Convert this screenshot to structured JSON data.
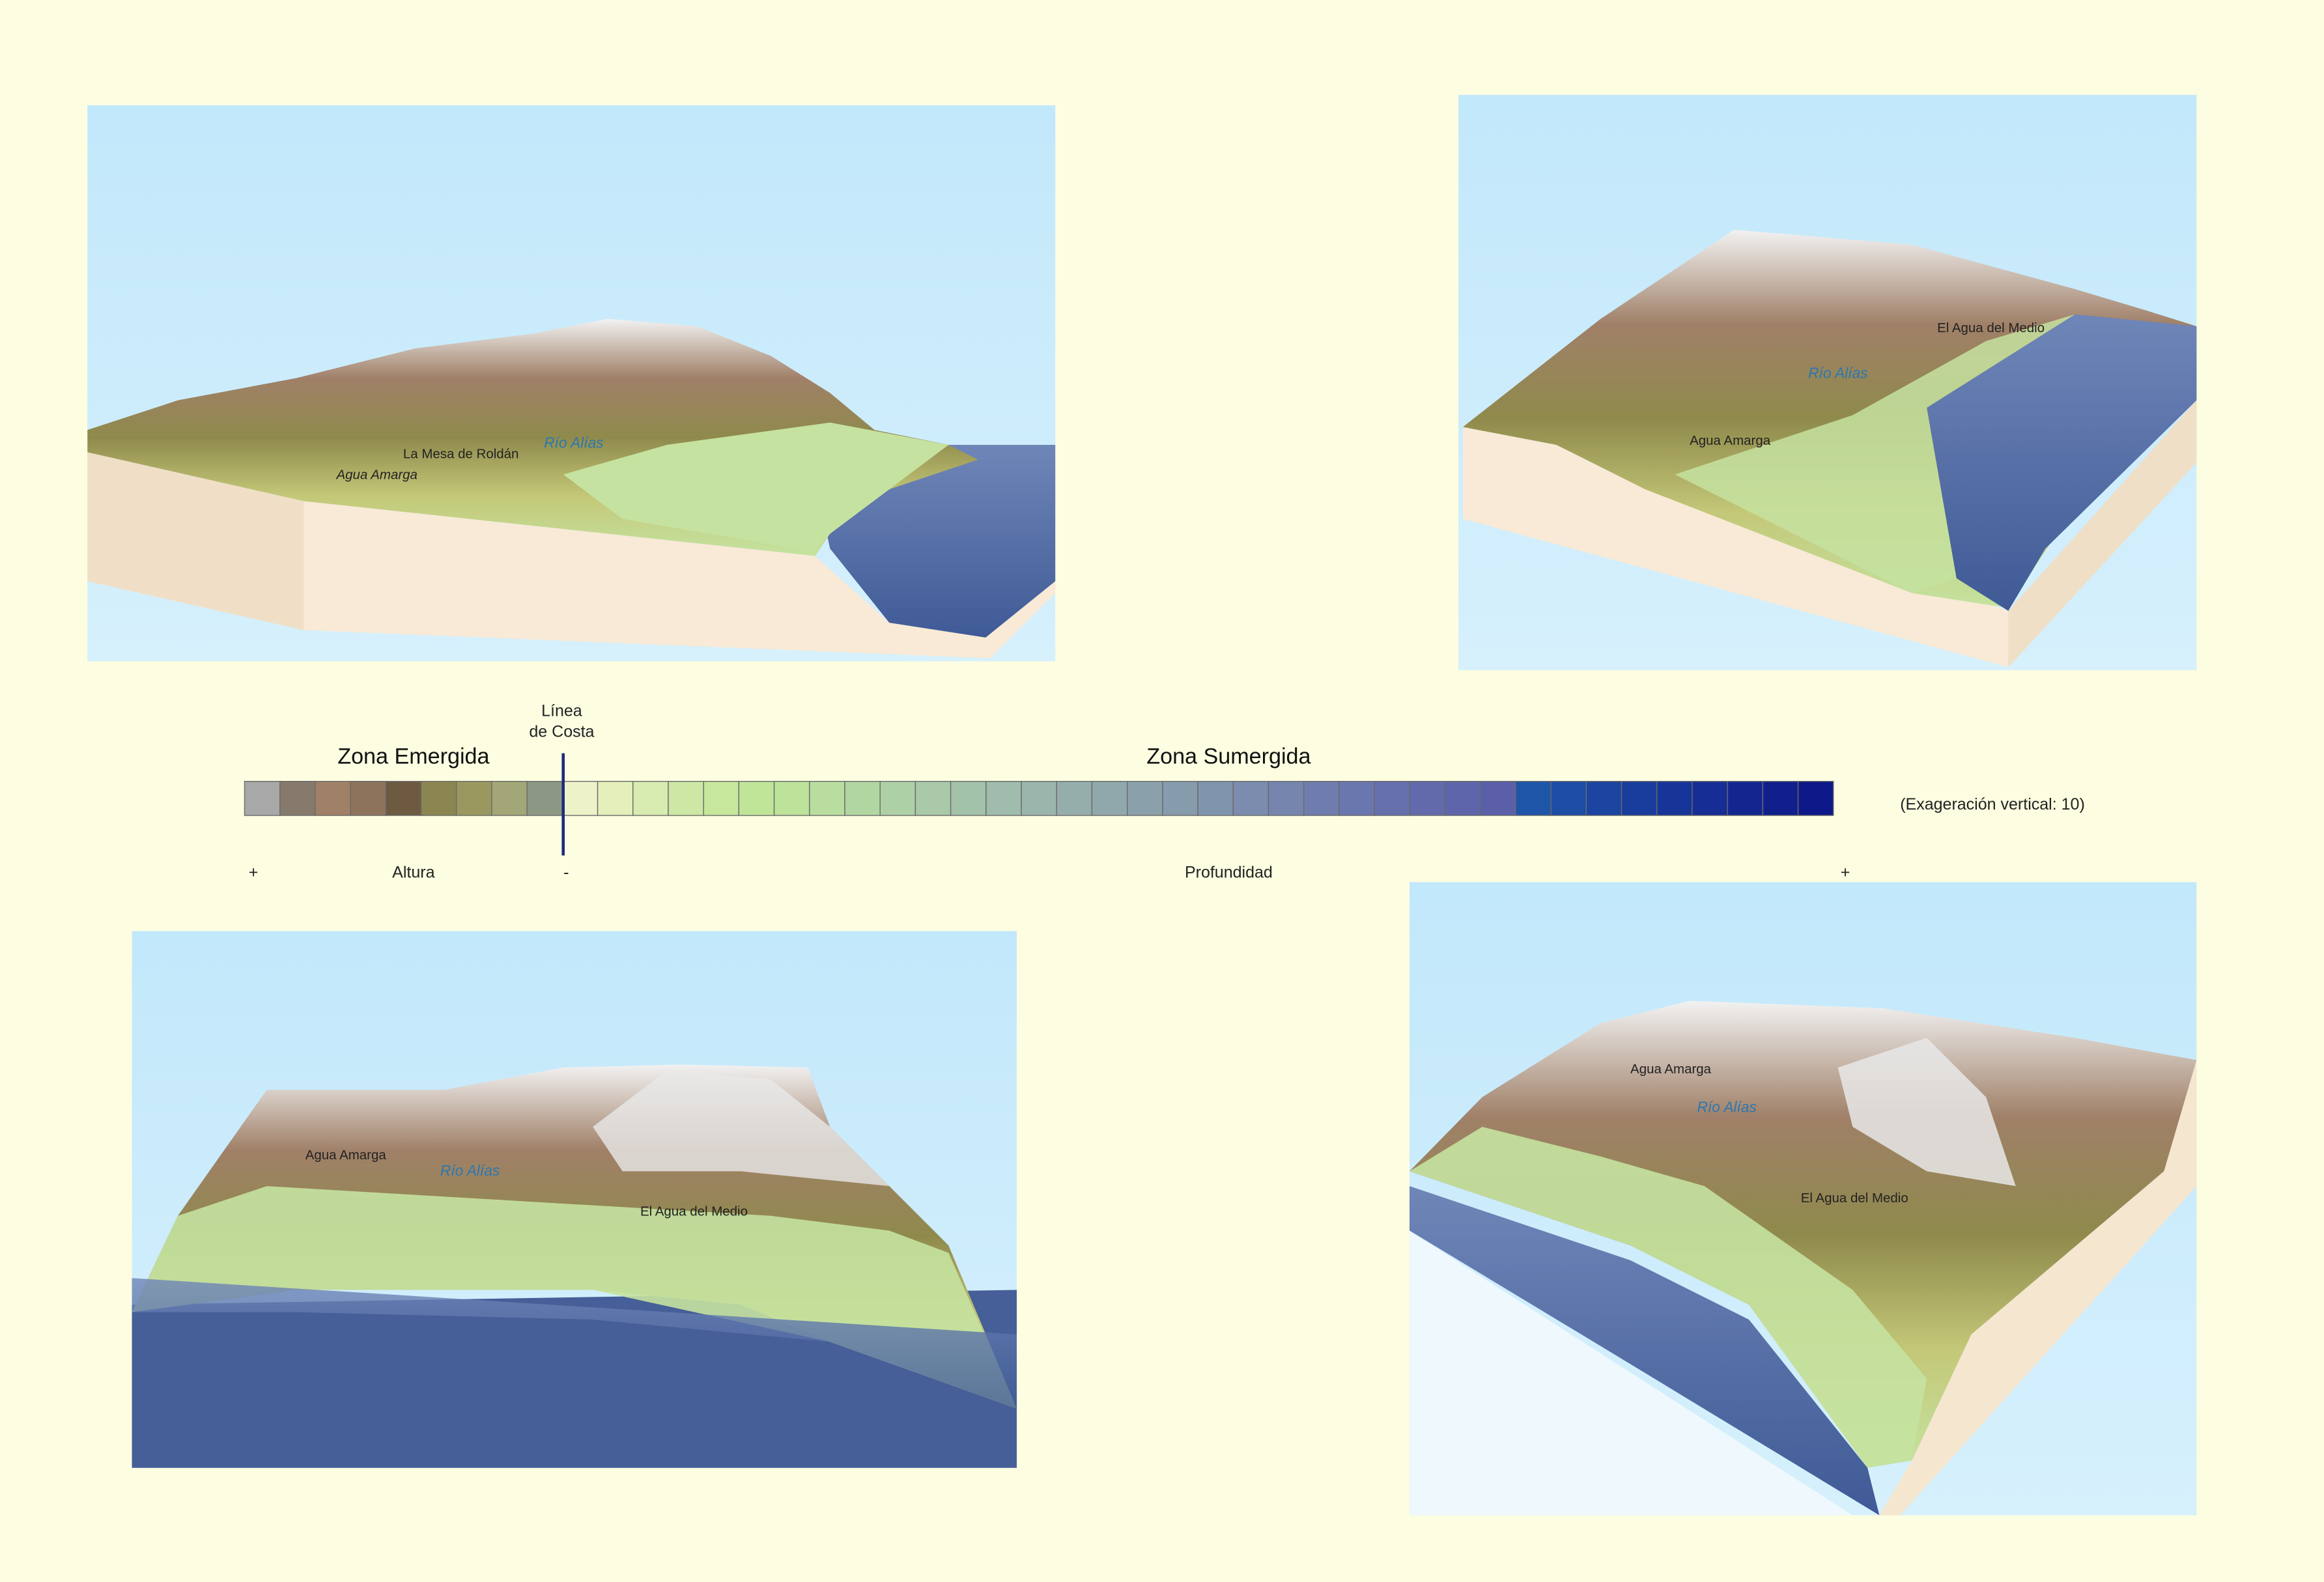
{
  "legend": {
    "emerged_zone": "Zona Emergida",
    "submerged_zone": "Zona Sumergida",
    "coastline": [
      "Línea",
      "de Costa"
    ],
    "plus_left": "+",
    "height": "Altura",
    "minus": "-",
    "depth": "Profundidad",
    "plus_right": "+",
    "exaggeration": "(Exageración vertical: 10)",
    "swatches": [
      "#a8a8a8",
      "#857a6c",
      "#a08066",
      "#8e735c",
      "#6e5a40",
      "#8b8650",
      "#9a985e",
      "#a3a676",
      "#8d9884",
      "#eef2c8",
      "#e4efbc",
      "#d8ebb0",
      "#cde8a4",
      "#c6e79c",
      "#c0e599",
      "#bde39a",
      "#b8dd9e",
      "#b2d6a2",
      "#aed0a6",
      "#a9c9a8",
      "#a3c2aa",
      "#9fbcac",
      "#9ab5ac",
      "#95aeac",
      "#90a8ac",
      "#8aa1ac",
      "#869bac",
      "#8094ad",
      "#7b8cae",
      "#7585ae",
      "#6f7dae",
      "#6a76ae",
      "#6670ad",
      "#626aac",
      "#5e65aa",
      "#5a5fa8",
      "#1e55a8",
      "#1d4da4",
      "#1b45a0",
      "#193d9c",
      "#173598",
      "#152d94",
      "#132690",
      "#111f8c",
      "#0f1888"
    ]
  },
  "panels": [
    {
      "labels": [
        "La Mesa de Roldán",
        "Río Alías",
        "Agua Amarga"
      ]
    },
    {
      "labels": [
        "El Agua del Medio",
        "Río Alías",
        "Agua Amarga"
      ]
    },
    {
      "labels": [
        "Agua Amarga",
        "Río Alías",
        "El Agua del Medio"
      ]
    },
    {
      "labels": [
        "Agua Amarga",
        "Río Alías",
        "El Agua del Medio"
      ]
    }
  ]
}
